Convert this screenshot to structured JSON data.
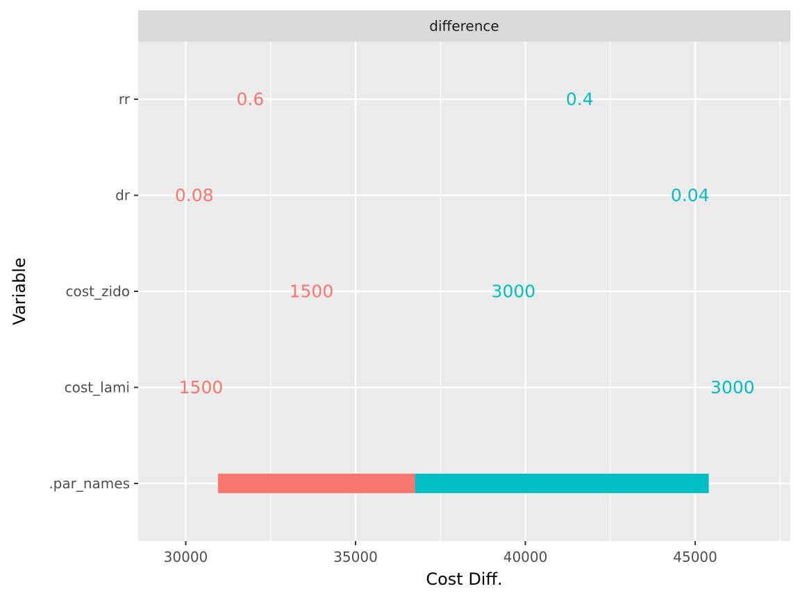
{
  "chart_data": {
    "type": "bar",
    "orientation": "horizontal",
    "facet_label": "difference",
    "xlabel": "Cost Diff.",
    "ylabel": "Variable",
    "xlim": [
      28600,
      47800
    ],
    "x_ticks": [
      30000,
      35000,
      40000,
      45000
    ],
    "x_tick_labels": [
      "30000",
      "35000",
      "40000",
      "45000"
    ],
    "categories": [
      "rr",
      "dr",
      "cost_zido",
      "cost_lami",
      ".par_names"
    ],
    "grid": true,
    "colors": {
      "low": "#F8766D",
      "high": "#00BFC4",
      "panel": "#EBEBEB",
      "strip": "#D9D9D9",
      "grid": "#ffffff"
    },
    "bars": [
      {
        "category": ".par_names",
        "group": "low",
        "start": 30950,
        "end": 36750
      },
      {
        "category": ".par_names",
        "group": "high",
        "start": 36750,
        "end": 45400
      }
    ],
    "labels": [
      {
        "category": "rr",
        "group": "low",
        "x": 31900,
        "text": "0.6"
      },
      {
        "category": "rr",
        "group": "high",
        "x": 41600,
        "text": "0.4"
      },
      {
        "category": "dr",
        "group": "low",
        "x": 30250,
        "text": "0.08"
      },
      {
        "category": "dr",
        "group": "high",
        "x": 44850,
        "text": "0.04"
      },
      {
        "category": "cost_zido",
        "group": "low",
        "x": 33700,
        "text": "1500"
      },
      {
        "category": "cost_zido",
        "group": "high",
        "x": 39650,
        "text": "3000"
      },
      {
        "category": "cost_lami",
        "group": "low",
        "x": 30450,
        "text": "1500"
      },
      {
        "category": "cost_lami",
        "group": "high",
        "x": 46100,
        "text": "3000"
      }
    ]
  }
}
